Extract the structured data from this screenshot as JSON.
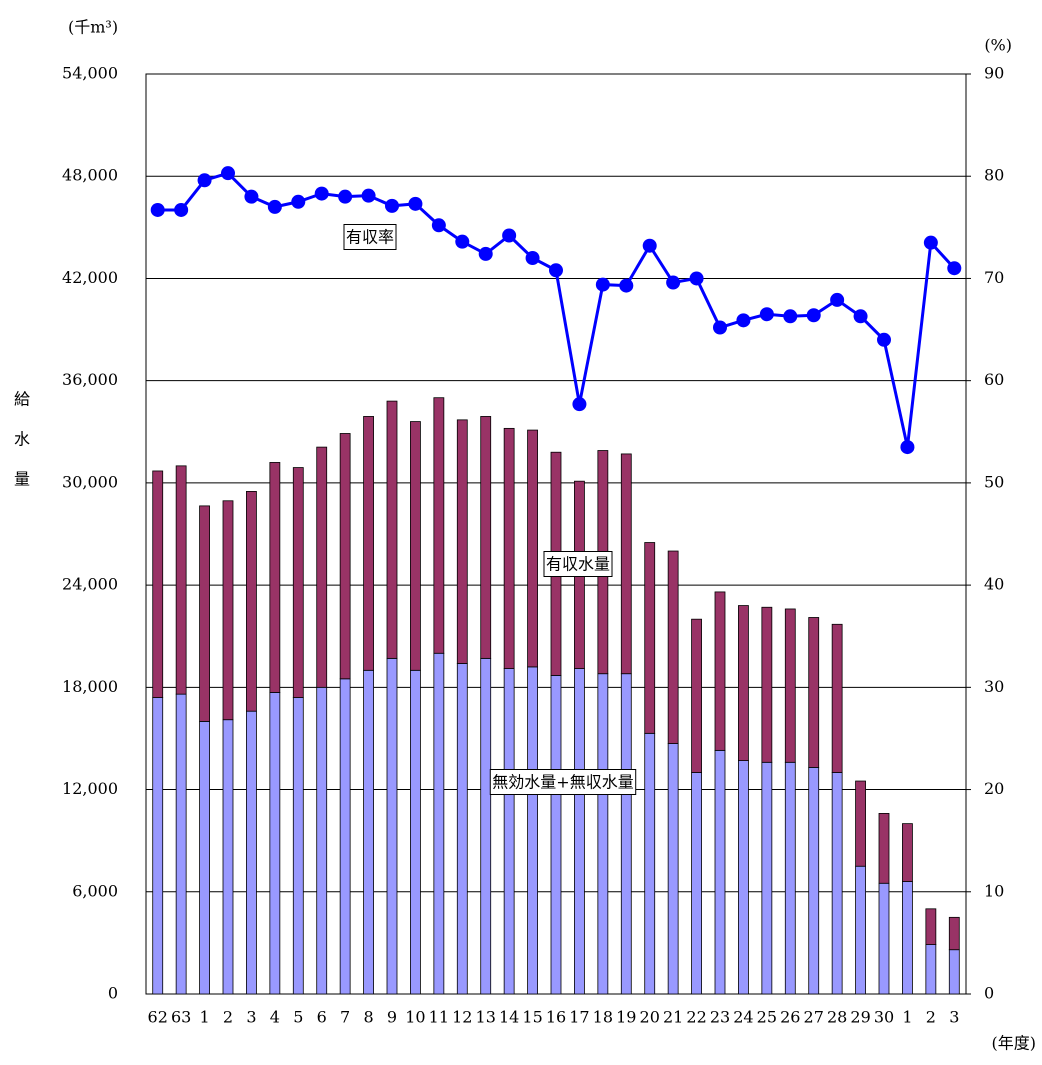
{
  "chart_data": {
    "type": "bar",
    "y_unit": "(千m³)",
    "y2_unit": "(%)",
    "y_label": "給水量",
    "x_unit": "(年度)",
    "categories": [
      "62",
      "63",
      "1",
      "2",
      "3",
      "4",
      "5",
      "6",
      "7",
      "8",
      "9",
      "10",
      "11",
      "12",
      "13",
      "14",
      "15",
      "16",
      "17",
      "18",
      "19",
      "20",
      "21",
      "22",
      "23",
      "24",
      "25",
      "26",
      "27",
      "28",
      "29",
      "30",
      "1",
      "2",
      "3"
    ],
    "series": [
      {
        "name": "有収水量",
        "color": "#9999ff",
        "type": "bar",
        "values": [
          17400,
          17600,
          16000,
          16100,
          16600,
          17700,
          17400,
          18000,
          18500,
          19000,
          19700,
          19000,
          20000,
          19400,
          19700,
          19100,
          19200,
          18700,
          19100,
          18800,
          18800,
          15300,
          14700,
          13000,
          14300,
          13700,
          13600,
          13600,
          13300,
          13000,
          7500,
          6500,
          6600,
          2900,
          2600
        ]
      },
      {
        "name": "無効水量+無収水量",
        "color": "#993366",
        "type": "bar",
        "values": [
          13300,
          13400,
          12650,
          12850,
          12900,
          13500,
          13500,
          14100,
          14400,
          14900,
          15100,
          14600,
          15000,
          14300,
          14200,
          14100,
          13900,
          13100,
          11000,
          13100,
          12900,
          11200,
          11300,
          9000,
          9300,
          9100,
          9100,
          9000,
          8800,
          8700,
          5000,
          4100,
          3400,
          2100,
          1900
        ]
      },
      {
        "name": "有収率",
        "color": "#0000ff",
        "type": "line",
        "axis": "y2",
        "values": [
          76.7,
          76.7,
          79.6,
          80.3,
          78.0,
          77.0,
          77.5,
          78.3,
          78.0,
          78.1,
          77.1,
          77.3,
          75.2,
          73.6,
          72.4,
          74.2,
          72.0,
          70.8,
          57.7,
          69.4,
          69.3,
          73.2,
          69.6,
          70.0,
          65.2,
          65.9,
          66.5,
          66.3,
          66.4,
          67.9,
          66.3,
          64.0,
          53.5,
          73.5,
          71.0
        ]
      }
    ],
    "ylim": [
      0,
      54000
    ],
    "yticks": [
      0,
      {
        "value": 6000,
        "label": "6,000"
      },
      {
        "value": 12000,
        "label": "12,000"
      },
      {
        "value": 18000,
        "label": "18,000"
      },
      {
        "value": 24000,
        "label": "24,000"
      },
      {
        "value": 30000,
        "label": "30,000"
      },
      {
        "value": 36000,
        "label": "36,000"
      },
      {
        "value": 42000,
        "label": "42,000"
      },
      {
        "value": 48000,
        "label": "48,000"
      },
      {
        "value": 54000,
        "label": "54,000"
      }
    ],
    "y2lim": [
      0,
      90
    ],
    "y2ticks": [
      0,
      10,
      20,
      30,
      40,
      50,
      60,
      70,
      80,
      90
    ],
    "grid": true
  }
}
